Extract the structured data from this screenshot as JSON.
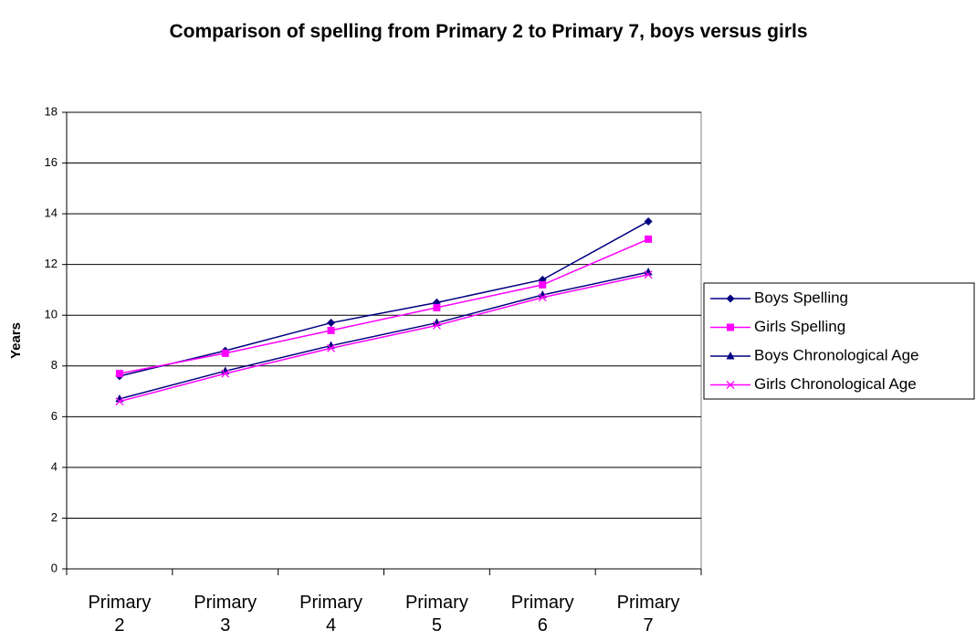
{
  "chart_data": {
    "type": "line",
    "title": "Comparison of spelling from Primary 2 to Primary 7, boys versus girls",
    "y_label": "Years",
    "categories": [
      "Primary 2",
      "Primary 3",
      "Primary 4",
      "Primary 5",
      "Primary 6",
      "Primary 7"
    ],
    "series": [
      {
        "name": "Boys Spelling",
        "color": "#000080",
        "marker": "diamond",
        "values": [
          7.6,
          8.6,
          9.7,
          10.5,
          11.4,
          13.7
        ]
      },
      {
        "name": "Girls Spelling",
        "color": "#ff00ff",
        "marker": "square",
        "values": [
          7.7,
          8.5,
          9.4,
          10.3,
          11.2,
          13.0
        ]
      },
      {
        "name": "Boys Chronological Age",
        "color": "#000080",
        "marker": "triangle",
        "values": [
          6.7,
          7.8,
          8.8,
          9.7,
          10.8,
          11.7
        ]
      },
      {
        "name": "Girls Chronological Age",
        "color": "#ff00ff",
        "marker": "x",
        "values": [
          6.6,
          7.7,
          8.7,
          9.6,
          10.7,
          11.6
        ]
      }
    ],
    "ylim": [
      0,
      18
    ],
    "yticks": [
      0,
      2,
      4,
      6,
      8,
      10,
      12,
      14,
      16,
      18
    ],
    "grid": true,
    "legend": "right"
  }
}
